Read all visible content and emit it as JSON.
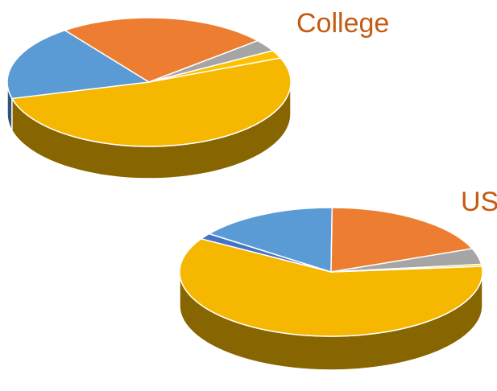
{
  "chart_data": [
    {
      "type": "pie",
      "title": "College",
      "slices": [
        {
          "value": 52,
          "color": "#F5B700"
        },
        {
          "value": 19,
          "color": "#5B9BD5"
        },
        {
          "value": 24,
          "color": "#ED7D31"
        },
        {
          "value": 3,
          "color": "#A5A5A5"
        },
        {
          "value": 2,
          "color": "#FFC000"
        }
      ],
      "legend": "none"
    },
    {
      "type": "pie",
      "title": "US",
      "slices": [
        {
          "value": 60,
          "color": "#F5B700"
        },
        {
          "value": 1.5,
          "color": "#4472C4"
        },
        {
          "value": 15,
          "color": "#5B9BD5"
        },
        {
          "value": 19,
          "color": "#ED7D31"
        },
        {
          "value": 4,
          "color": "#A5A5A5"
        },
        {
          "value": 0.5,
          "color": "#FFC000"
        }
      ],
      "legend": "none"
    }
  ],
  "colors": {
    "title": "#C55A11",
    "background": "#FFFFFF"
  }
}
